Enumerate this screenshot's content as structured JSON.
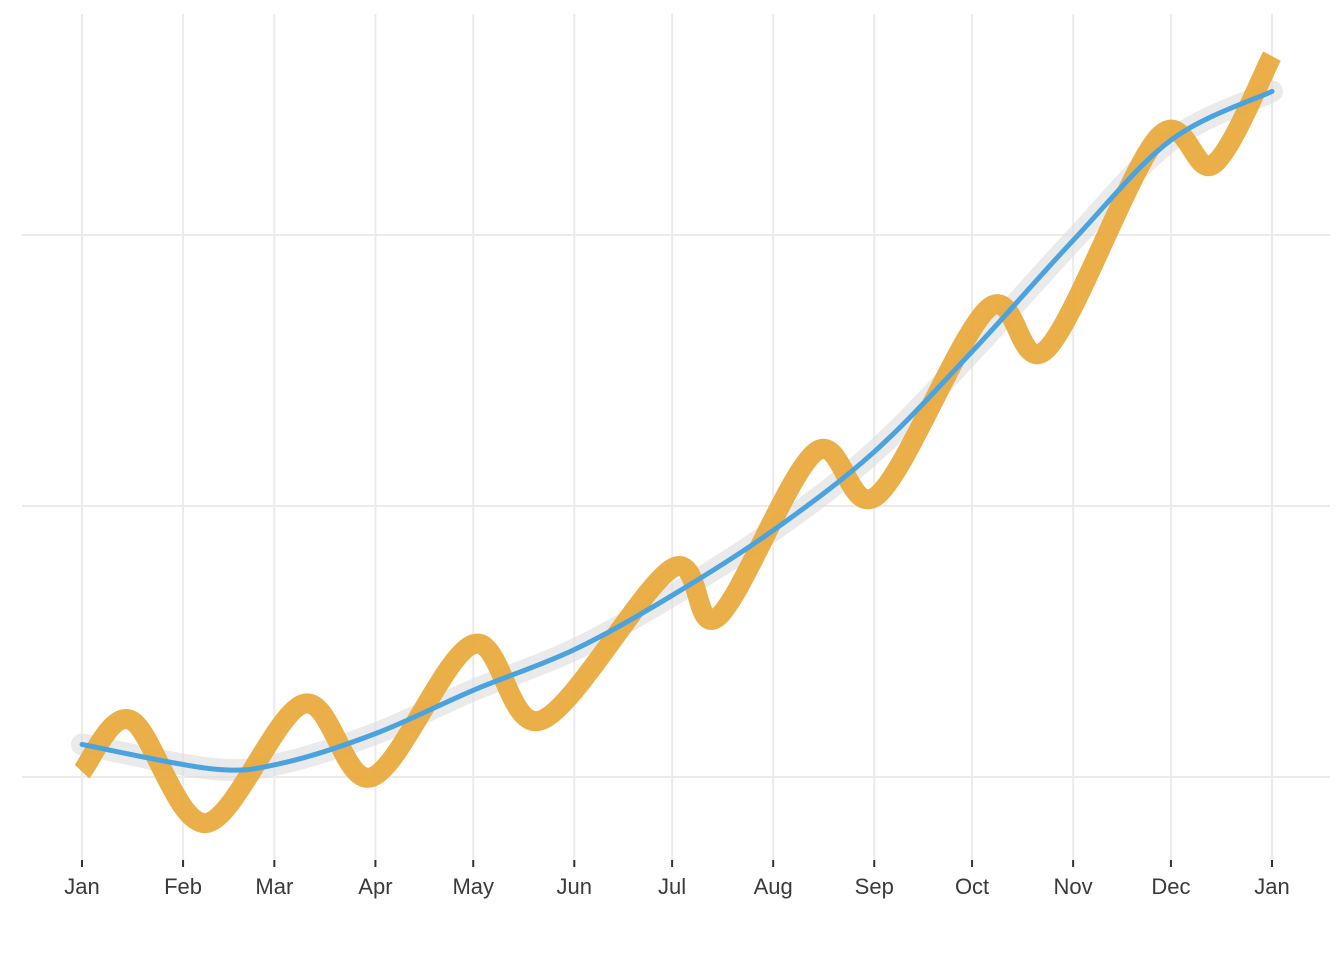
{
  "chart_data": {
    "type": "line",
    "title": "",
    "xlabel": "",
    "ylabel": "",
    "x_ticks": [
      "Jan",
      "Feb",
      "Mar",
      "Apr",
      "May",
      "Jun",
      "Jul",
      "Aug",
      "Sep",
      "Oct",
      "Nov",
      "Dec",
      "Jan"
    ],
    "xlim": [
      0,
      365
    ],
    "ylim": [
      -0.3,
      2.75
    ],
    "y_gridlines": [
      0,
      1,
      2
    ],
    "y_tick_labels_shown": false,
    "grid": true,
    "legend": "none",
    "series": [
      {
        "kind": "raw",
        "color": "#e8a838",
        "points": [
          {
            "x": 0,
            "y": 0.02
          },
          {
            "x": 15,
            "y": 0.21
          },
          {
            "x": 38,
            "y": -0.17
          },
          {
            "x": 68,
            "y": 0.27
          },
          {
            "x": 89,
            "y": 0.0
          },
          {
            "x": 120,
            "y": 0.49
          },
          {
            "x": 141,
            "y": 0.21
          },
          {
            "x": 181,
            "y": 0.77
          },
          {
            "x": 195,
            "y": 0.59
          },
          {
            "x": 225,
            "y": 1.2
          },
          {
            "x": 244,
            "y": 1.04
          },
          {
            "x": 278,
            "y": 1.73
          },
          {
            "x": 296,
            "y": 1.58
          },
          {
            "x": 330,
            "y": 2.36
          },
          {
            "x": 347,
            "y": 2.26
          },
          {
            "x": 365,
            "y": 2.66
          }
        ]
      },
      {
        "kind": "smooth",
        "color": "#4aa3df",
        "band_color": "#dcdcdc",
        "points": [
          {
            "x": 0,
            "y": 0.12
          },
          {
            "x": 40,
            "y": 0.03
          },
          {
            "x": 61,
            "y": 0.05
          },
          {
            "x": 90,
            "y": 0.16
          },
          {
            "x": 120,
            "y": 0.32
          },
          {
            "x": 151,
            "y": 0.47
          },
          {
            "x": 181,
            "y": 0.67
          },
          {
            "x": 212,
            "y": 0.91
          },
          {
            "x": 243,
            "y": 1.2
          },
          {
            "x": 273,
            "y": 1.57
          },
          {
            "x": 304,
            "y": 1.98
          },
          {
            "x": 334,
            "y": 2.35
          },
          {
            "x": 365,
            "y": 2.53
          }
        ]
      }
    ]
  }
}
